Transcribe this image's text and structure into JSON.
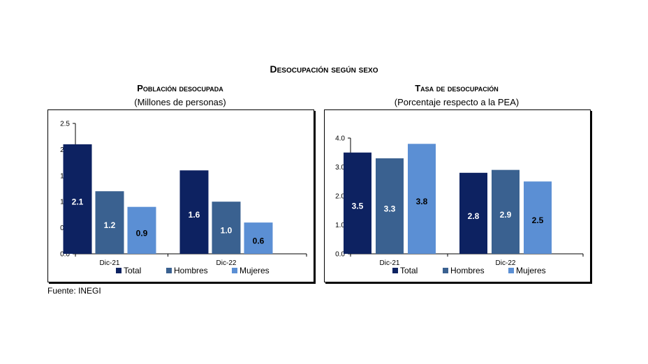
{
  "page": {
    "title": "Desocupación según sexo",
    "source": "Fuente: INEGI"
  },
  "colors": {
    "total": "#0d2261",
    "hombres": "#3a6190",
    "mujeres": "#5b8fd4"
  },
  "chart_data": [
    {
      "type": "bar",
      "title": "Población desocupada",
      "subtitle": "(Millones de personas)",
      "categories": [
        "Dic-21",
        "Dic-22"
      ],
      "series": [
        {
          "name": "Total",
          "values": [
            2.1,
            1.6
          ],
          "labels": [
            "2.1",
            "1.6"
          ],
          "color": "#0d2261"
        },
        {
          "name": "Hombres",
          "values": [
            1.2,
            1.0
          ],
          "labels": [
            "1.2",
            "1.0"
          ],
          "color": "#3a6190"
        },
        {
          "name": "Mujeres",
          "values": [
            0.9,
            0.6
          ],
          "labels": [
            "0.9",
            "0.6"
          ],
          "color": "#5b8fd4"
        }
      ],
      "ylim": [
        0,
        2.5
      ],
      "yticks": [
        "0.0",
        "0.5",
        "1.0",
        "1.5",
        "2.0",
        "2.5"
      ],
      "ytick_values": [
        0,
        0.5,
        1.0,
        1.5,
        2.0,
        2.5
      ],
      "legend": "bottom",
      "grid": false
    },
    {
      "type": "bar",
      "title": "Tasa de desocupación",
      "subtitle": "(Porcentaje respecto a la PEA)",
      "categories": [
        "Dic-21",
        "Dic-22"
      ],
      "series": [
        {
          "name": "Total",
          "values": [
            3.5,
            2.8
          ],
          "labels": [
            "3.5",
            "2.8"
          ],
          "color": "#0d2261"
        },
        {
          "name": "Hombres",
          "values": [
            3.3,
            2.9
          ],
          "labels": [
            "3.3",
            "2.9"
          ],
          "color": "#3a6190"
        },
        {
          "name": "Mujeres",
          "values": [
            3.8,
            2.5
          ],
          "labels": [
            "3.8",
            "2.5"
          ],
          "color": "#5b8fd4"
        }
      ],
      "ylim": [
        0,
        4.0
      ],
      "yticks": [
        "0.0",
        "1.0",
        "2.0",
        "3.0",
        "4.0"
      ],
      "ytick_values": [
        0,
        1.0,
        2.0,
        3.0,
        4.0
      ],
      "legend": "bottom",
      "grid": false
    }
  ]
}
